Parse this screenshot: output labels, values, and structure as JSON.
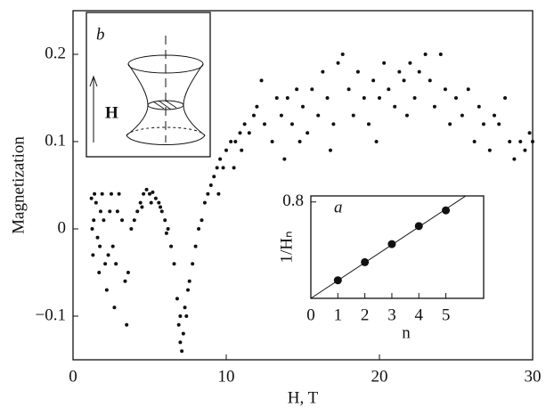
{
  "chart_data": [
    {
      "type": "scatter",
      "x_label": "H, T",
      "y_label": "Magnetization",
      "color": "#111111",
      "xlim": [
        0,
        30
      ],
      "ylim": [
        -0.15,
        0.25
      ],
      "xticks": [
        0,
        10,
        20,
        30
      ],
      "yticks": [
        {
          "value": -0.1,
          "label": "−0.1"
        },
        0,
        0.1,
        0.2
      ],
      "annotations": [
        "b",
        "H"
      ],
      "x": [
        1.2,
        1.25,
        1.3,
        1.35,
        1.4,
        1.5,
        1.6,
        1.7,
        1.75,
        1.8,
        1.9,
        2.0,
        2.1,
        2.2,
        2.3,
        2.4,
        2.5,
        2.6,
        2.7,
        2.8,
        2.9,
        3.0,
        3.2,
        3.4,
        3.5,
        3.6,
        3.8,
        4.0,
        4.2,
        4.4,
        4.6,
        4.8,
        5.0,
        5.2,
        5.4,
        5.6,
        5.8,
        6.0,
        6.2,
        6.4,
        6.6,
        4.5,
        5.1,
        5.7,
        6.1,
        6.8,
        6.9,
        7.0,
        7.1,
        7.2,
        7.3,
        7.4,
        7.6,
        7.8,
        8.0,
        8.2,
        7.0,
        7.5,
        8.4,
        8.6,
        8.8,
        9.0,
        9.2,
        9.4,
        9.6,
        9.8,
        10.0,
        10.3,
        10.6,
        10.9,
        11.2,
        11.5,
        11.8,
        9.5,
        10.5,
        11.0,
        12.0,
        12.3,
        12.5,
        13.0,
        13.3,
        13.6,
        14.0,
        14.3,
        14.6,
        15.0,
        15.3,
        15.6,
        16.0,
        16.3,
        16.6,
        17.0,
        17.3,
        17.6,
        18.0,
        18.3,
        18.6,
        19.0,
        19.3,
        19.6,
        20.0,
        20.3,
        20.6,
        21.0,
        21.3,
        21.6,
        22.0,
        22.3,
        22.6,
        23.0,
        23.3,
        23.6,
        24.0,
        24.3,
        24.6,
        25.0,
        14.8,
        16.8,
        19.8,
        13.8,
        21.8,
        25.4,
        25.8,
        26.2,
        26.5,
        26.8,
        27.2,
        27.5,
        27.8,
        28.2,
        28.5,
        28.8,
        29.2,
        29.5,
        29.8,
        30.0
      ],
      "values": [
        0.035,
        0.0,
        -0.03,
        0.01,
        0.04,
        0.03,
        -0.01,
        -0.05,
        -0.02,
        0.02,
        0.04,
        0.01,
        -0.04,
        -0.07,
        -0.03,
        0.02,
        0.04,
        -0.02,
        -0.09,
        -0.04,
        0.02,
        0.04,
        0.01,
        -0.06,
        -0.11,
        -0.05,
        0.0,
        0.01,
        0.02,
        0.03,
        0.04,
        0.045,
        0.04,
        0.042,
        0.035,
        0.03,
        0.02,
        0.01,
        0.0,
        -0.02,
        -0.04,
        0.025,
        0.03,
        0.025,
        -0.005,
        -0.08,
        -0.11,
        -0.13,
        -0.14,
        -0.12,
        -0.09,
        -0.1,
        -0.06,
        -0.04,
        -0.02,
        0.0,
        -0.1,
        -0.07,
        0.01,
        0.03,
        0.04,
        0.05,
        0.06,
        0.07,
        0.08,
        0.07,
        0.09,
        0.1,
        0.1,
        0.11,
        0.12,
        0.11,
        0.13,
        0.04,
        0.07,
        0.09,
        0.14,
        0.17,
        0.12,
        0.1,
        0.15,
        0.13,
        0.15,
        0.12,
        0.16,
        0.14,
        0.11,
        0.16,
        0.13,
        0.18,
        0.15,
        0.12,
        0.19,
        0.2,
        0.16,
        0.13,
        0.18,
        0.15,
        0.12,
        0.17,
        0.15,
        0.19,
        0.16,
        0.14,
        0.18,
        0.17,
        0.19,
        0.15,
        0.18,
        0.2,
        0.17,
        0.14,
        0.2,
        0.16,
        0.12,
        0.15,
        0.1,
        0.09,
        0.1,
        0.08,
        0.13,
        0.13,
        0.16,
        0.1,
        0.14,
        0.12,
        0.09,
        0.13,
        0.12,
        0.15,
        0.1,
        0.08,
        0.1,
        0.09,
        0.11,
        0.1
      ]
    },
    {
      "type": "scatter",
      "title": "a",
      "x_label": "n",
      "y_label": "1/Hₙ",
      "color": "#111111",
      "xlim": [
        0,
        6.4
      ],
      "ylim": [
        0,
        0.85
      ],
      "xticks": [
        0,
        1,
        2,
        3,
        4,
        5
      ],
      "yticks": [
        0.8
      ],
      "x": [
        1,
        2,
        3,
        4,
        5
      ],
      "values": [
        0.15,
        0.3,
        0.45,
        0.6,
        0.73
      ]
    }
  ]
}
